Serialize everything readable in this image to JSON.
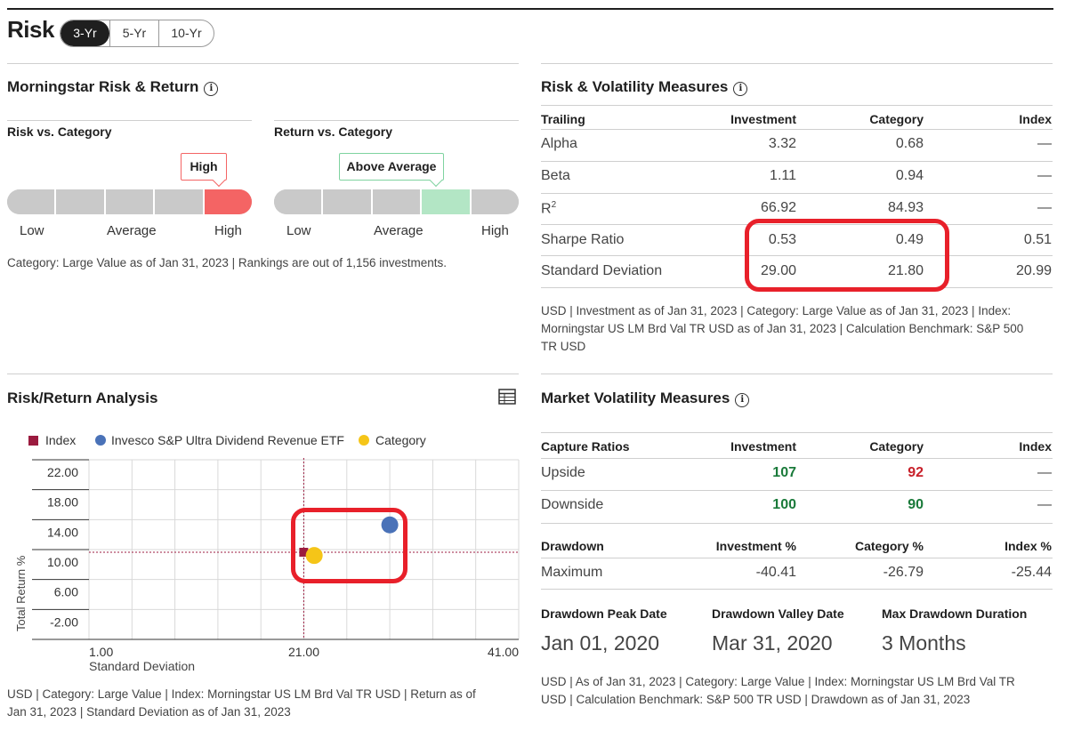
{
  "header": {
    "title": "Risk",
    "periods": [
      "3-Yr",
      "5-Yr",
      "10-Yr"
    ],
    "active_period": "3-Yr"
  },
  "risk_return": {
    "title": "Morningstar Risk & Return",
    "risk": {
      "title": "Risk vs. Category",
      "rating": "High",
      "level_index": 4,
      "levels": 5
    },
    "return": {
      "title": "Return vs. Category",
      "rating": "Above Average",
      "level_index": 3,
      "levels": 5
    },
    "scale": {
      "low": "Low",
      "average": "Average",
      "high": "High"
    },
    "note": "Category: Large Value as of Jan 31, 2023 | Rankings are out of 1,156 investments."
  },
  "volatility": {
    "title": "Risk & Volatility Measures",
    "headers": [
      "Trailing",
      "Investment",
      "Category",
      "Index"
    ],
    "rows": [
      {
        "label": "Alpha",
        "investment": "3.32",
        "category": "0.68",
        "index": "—"
      },
      {
        "label": "Beta",
        "investment": "1.11",
        "category": "0.94",
        "index": "—"
      },
      {
        "label": "R",
        "sup": "2",
        "investment": "66.92",
        "category": "84.93",
        "index": "—"
      },
      {
        "label": "Sharpe Ratio",
        "investment": "0.53",
        "category": "0.49",
        "index": "0.51"
      },
      {
        "label": "Standard Deviation",
        "investment": "29.00",
        "category": "21.80",
        "index": "20.99"
      }
    ],
    "note_l1": "USD | Investment as of Jan 31, 2023 | Category: Large Value as of Jan 31, 2023 | Index:",
    "note_l2": "Morningstar US LM Brd Val TR USD as of Jan 31, 2023 | Calculation Benchmark: S&P 500",
    "note_l3": "TR USD"
  },
  "analysis": {
    "title": "Risk/Return Analysis",
    "legend": [
      "Index",
      "Invesco S&P Ultra Dividend Revenue ETF",
      "Category"
    ],
    "note_l1": "USD | Category: Large Value | Index: Morningstar US LM Brd Val TR USD | Return as of",
    "note_l2": "Jan 31, 2023 | Standard Deviation as of Jan 31, 2023"
  },
  "chart_data": {
    "type": "scatter",
    "xlabel": "Standard Deviation",
    "ylabel": "Total Return %",
    "x_ticks": [
      "1.00",
      "21.00",
      "41.00"
    ],
    "y_ticks": [
      "22.00",
      "18.00",
      "14.00",
      "10.00",
      "6.00",
      "-2.00"
    ],
    "points": [
      {
        "name": "Index",
        "x": 20.99,
        "y": 10.0,
        "color": "#9b1b3f",
        "shape": "square"
      },
      {
        "name": "Invesco S&P Ultra Dividend Revenue ETF",
        "x": 29.0,
        "y": 13.3,
        "color": "#4a72b8",
        "shape": "circle"
      },
      {
        "name": "Category",
        "x": 21.8,
        "y": 9.8,
        "color": "#f5c518",
        "shape": "circle"
      }
    ],
    "reference_x": 20.99,
    "reference_y": 10.0
  },
  "market": {
    "title": "Market Volatility Measures",
    "capture_headers": [
      "Capture Ratios",
      "Investment",
      "Category",
      "Index"
    ],
    "capture_rows": [
      {
        "label": "Upside",
        "investment": "107",
        "category": "92",
        "index": "—"
      },
      {
        "label": "Downside",
        "investment": "100",
        "category": "90",
        "index": "—"
      }
    ],
    "drawdown_headers": [
      "Drawdown",
      "Investment %",
      "Category %",
      "Index %"
    ],
    "drawdown_row": {
      "label": "Maximum",
      "investment": "-40.41",
      "category": "-26.79",
      "index": "-25.44"
    },
    "peak_label": "Drawdown Peak Date",
    "peak_value": "Jan 01, 2020",
    "valley_label": "Drawdown Valley Date",
    "valley_value": "Mar 31, 2020",
    "duration_label": "Max Drawdown Duration",
    "duration_value": "3 Months",
    "note_l1": "USD | As of Jan 31, 2023 | Category: Large Value | Index: Morningstar US LM Brd Val TR",
    "note_l2": "USD | Calculation Benchmark: S&P 500 TR USD | Drawdown as of Jan 31, 2023"
  },
  "colors": {
    "highlight": "#e8202a",
    "risk_high": "#f46464",
    "return_above": "#b3e6c5"
  }
}
